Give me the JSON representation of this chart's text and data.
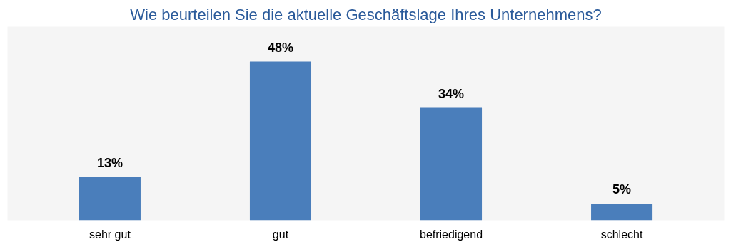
{
  "chart_data": {
    "type": "bar",
    "title": "Wie beurteilen Sie die aktuelle Geschäftslage Ihres Unternehmens?",
    "categories": [
      "sehr gut",
      "gut",
      "befriedigend",
      "schlecht"
    ],
    "values": [
      13,
      48,
      34,
      5
    ],
    "color": "#4a7ebb",
    "value_labels": [
      "13%",
      "48%",
      "34%",
      "5%"
    ]
  }
}
